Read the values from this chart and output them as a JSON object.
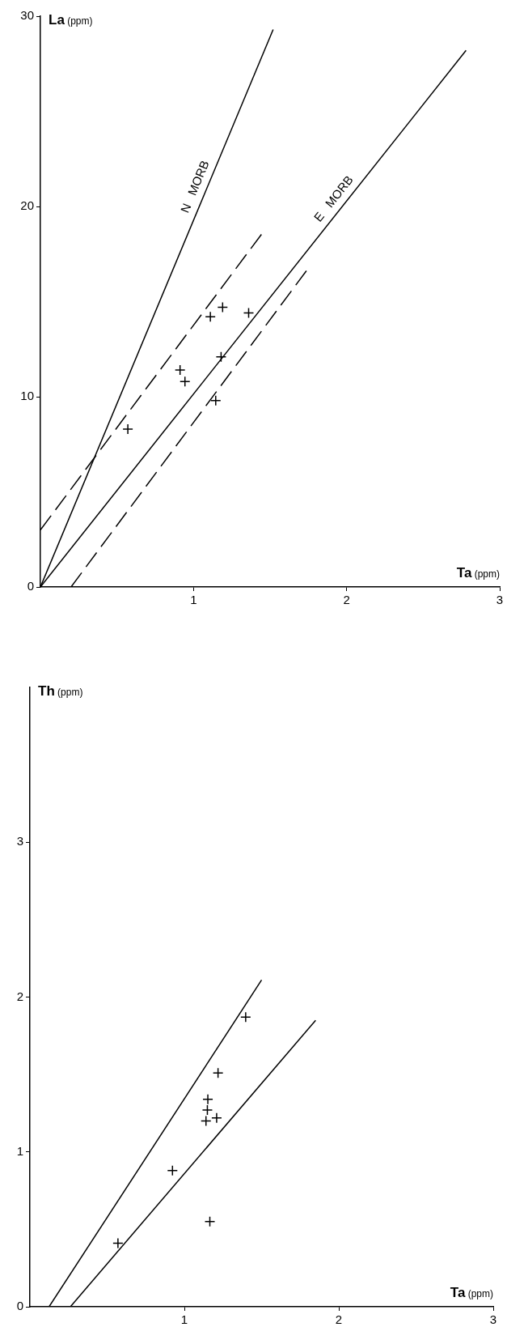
{
  "chart_data": [
    {
      "type": "scatter",
      "xlabel": "Ta (ppm)",
      "ylabel": "La (ppm)",
      "xlim": [
        0,
        3
      ],
      "ylim": [
        0,
        30
      ],
      "xticks": [
        1,
        2,
        3
      ],
      "yticks": [
        0,
        10,
        20,
        30
      ],
      "grid": false,
      "legend": false,
      "marker": "cross",
      "series": [
        {
          "color": "#000000",
          "x": [
            0.571,
            0.912,
            0.944,
            1.11,
            1.19,
            1.36,
            1.18,
            1.145
          ],
          "values": [
            8.3,
            11.4,
            10.8,
            14.2,
            14.7,
            14.4,
            12.1,
            9.8
          ]
        },
        {
          "type": "line",
          "name": "N MORB",
          "color": "#000000",
          "marker": "none",
          "line_style": "solid",
          "x": [
            0,
            1.52
          ],
          "values": [
            0,
            29.3
          ]
        },
        {
          "type": "line",
          "name": "E MORB",
          "color": "#000000",
          "marker": "none",
          "line_style": "solid",
          "x": [
            0,
            2.78
          ],
          "values": [
            0,
            28.2
          ]
        },
        {
          "type": "line",
          "color": "#000000",
          "marker": "none",
          "line_style": "dashed",
          "x": [
            0,
            1.45
          ],
          "values": [
            3.0,
            18.6
          ]
        },
        {
          "type": "line",
          "color": "#000000",
          "marker": "none",
          "line_style": "dashed",
          "x": [
            0.2,
            1.745
          ],
          "values": [
            0,
            16.7
          ]
        }
      ]
    },
    {
      "type": "scatter",
      "xlabel": "Ta (ppm)",
      "ylabel": "Th (ppm)",
      "xlim": [
        0,
        3
      ],
      "ylim": [
        0,
        4
      ],
      "xticks": [
        1,
        2,
        3
      ],
      "yticks": [
        0,
        1,
        2,
        3
      ],
      "grid": false,
      "legend": false,
      "marker": "cross",
      "series": [
        {
          "color": "#000000",
          "x": [
            1.397,
            1.218,
            1.152,
            1.149,
            1.14,
            1.209,
            0.923,
            1.165,
            0.57
          ],
          "values": [
            1.87,
            1.51,
            1.34,
            1.27,
            1.2,
            1.22,
            0.88,
            0.55,
            0.41
          ]
        },
        {
          "type": "line",
          "color": "#000000",
          "marker": "none",
          "line_style": "solid",
          "x": [
            0.124,
            1.5
          ],
          "values": [
            0,
            2.11
          ]
        },
        {
          "type": "line",
          "color": "#000000",
          "marker": "none",
          "line_style": "solid",
          "x": [
            0.262,
            1.85
          ],
          "values": [
            0,
            1.85
          ]
        }
      ]
    }
  ]
}
